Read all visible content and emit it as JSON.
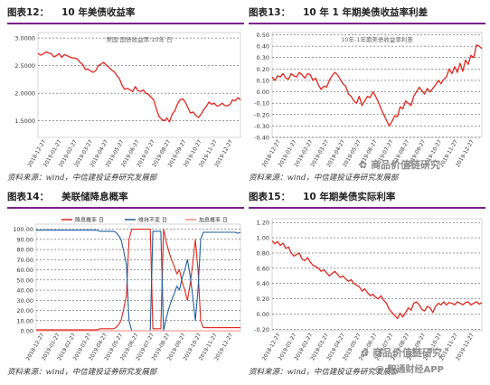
{
  "panels": [
    {
      "caption_no": "图表12：",
      "caption_title": "10 年美债收益率",
      "source": "资料来源：wind，中信建投证券研究发展部"
    },
    {
      "caption_no": "图表13：",
      "caption_title": "10 年 1 年期美债收益率利差",
      "source": "资料来源：wind，中信建投证券研究发展部"
    },
    {
      "caption_no": "图表14：",
      "caption_title": "美联储降息概率",
      "source": "资料来源：wind，中信建投证券研究发展部"
    },
    {
      "caption_no": "图表15：",
      "caption_title": "10 年期美债实际利率",
      "source": "资料来源：wind，中信建投证券研究发展部"
    }
  ],
  "watermark": {
    "top": "商品价值链研究",
    "bottom_1": "商品价值链研究",
    "bottom_2": "@ 智通财经APP"
  },
  "colors": {
    "red": "#e0261c",
    "blue": "#1f5f9e",
    "pink": "#f28b82",
    "rule": "#7a1f8c"
  },
  "chart_data": [
    {
      "type": "line",
      "title": "美国:国债收益率:10年  日",
      "x_ticks": [
        "2018-12-27",
        "2019-01-27",
        "2019-02-27",
        "2019-03-27",
        "2019-04-27",
        "2019-05-27",
        "2019-06-27",
        "2019-07-27",
        "2019-08-27",
        "2019-09-27",
        "2019-10-27",
        "2019-11-27",
        "2019-12-27"
      ],
      "y_ticks": [
        "1.5000",
        "2.0000",
        "2.5000",
        "3.0000"
      ],
      "ylim": [
        1.2,
        3.1
      ],
      "series": [
        {
          "name": "",
          "color": "#e0261c",
          "y": [
            2.72,
            2.69,
            2.71,
            2.75,
            2.73,
            2.72,
            2.66,
            2.68,
            2.72,
            2.65,
            2.7,
            2.68,
            2.66,
            2.64,
            2.64,
            2.62,
            2.56,
            2.52,
            2.43,
            2.44,
            2.4,
            2.38,
            2.41,
            2.5,
            2.53,
            2.56,
            2.51,
            2.47,
            2.42,
            2.39,
            2.32,
            2.26,
            2.14,
            2.07,
            2.09,
            2.06,
            2.03,
            2.12,
            2.05,
            2.03,
            2.06,
            2.0,
            1.98,
            1.93,
            1.88,
            1.72,
            1.58,
            1.53,
            1.5,
            1.55,
            1.48,
            1.62,
            1.68,
            1.8,
            1.88,
            1.9,
            1.84,
            1.74,
            1.64,
            1.66,
            1.6,
            1.56,
            1.62,
            1.7,
            1.76,
            1.84,
            1.8,
            1.82,
            1.77,
            1.78,
            1.82,
            1.78,
            1.77,
            1.8,
            1.88,
            1.86,
            1.92,
            1.88
          ]
        }
      ]
    },
    {
      "type": "line",
      "title": "10年-1年期美债收益率利差",
      "x_ticks": [
        "2018-12-27",
        "2019-01-27",
        "2019-02-27",
        "2019-03-27",
        "2019-04-27",
        "2019-05-27",
        "2019-06-27",
        "2019-07-27",
        "2019-08-27",
        "2019-09-27",
        "2019-10-27",
        "2019-11-27",
        "2019-12-27"
      ],
      "y_ticks": [
        "-0.40",
        "-0.30",
        "-0.20",
        "-0.10",
        "0.00",
        "0.10",
        "0.20",
        "0.30",
        "0.40",
        "0.50"
      ],
      "ylim": [
        -0.4,
        0.52
      ],
      "series": [
        {
          "name": "",
          "color": "#e0261c",
          "y": [
            0.13,
            0.1,
            0.14,
            0.13,
            0.16,
            0.12,
            0.11,
            0.16,
            0.14,
            0.13,
            0.17,
            0.15,
            0.12,
            0.16,
            0.15,
            0.1,
            0.12,
            0.06,
            0.02,
            0.05,
            0.04,
            0.1,
            0.14,
            0.17,
            0.15,
            0.11,
            0.07,
            0.05,
            -0.02,
            -0.04,
            -0.08,
            -0.1,
            -0.04,
            -0.12,
            -0.08,
            -0.04,
            -0.05,
            0.0,
            -0.04,
            -0.09,
            -0.15,
            -0.2,
            -0.25,
            -0.3,
            -0.26,
            -0.21,
            -0.22,
            -0.13,
            -0.15,
            -0.08,
            -0.1,
            -0.12,
            -0.04,
            0.0,
            0.04,
            0.01,
            -0.02,
            0.03,
            0.0,
            0.03,
            0.06,
            0.1,
            0.07,
            0.11,
            0.13,
            0.2,
            0.16,
            0.22,
            0.17,
            0.25,
            0.18,
            0.28,
            0.24,
            0.32,
            0.3,
            0.41,
            0.4,
            0.38
          ]
        }
      ]
    },
    {
      "type": "line",
      "title": "",
      "legend": [
        "降息概率 日",
        "维持不变 日",
        "加息概率 日"
      ],
      "x_ticks": [
        "2018-12-27",
        "2019-01-27",
        "2019-02-27",
        "2019-03-27",
        "2019-04-27",
        "2019-05-27",
        "2019-06-27",
        "2019-07-27",
        "2019-08-27",
        "2019-09-27",
        "2019-10-27",
        "2019-11-27",
        "2019-12-27"
      ],
      "y_ticks": [
        "0.00",
        "10.00",
        "20.00",
        "30.00",
        "40.00",
        "50.00",
        "60.00",
        "70.00",
        "80.00",
        "90.00",
        "100.00"
      ],
      "ylim": [
        0,
        105
      ],
      "series": [
        {
          "name": "降息概率 日",
          "color": "#e0261c",
          "x": [
            0,
            1,
            2,
            3,
            4,
            5,
            6,
            7,
            8,
            9,
            10,
            11,
            12,
            13,
            14,
            15,
            16,
            17,
            18,
            19,
            20,
            21,
            22,
            23,
            24,
            25,
            26,
            27,
            28,
            29,
            30,
            31,
            32,
            33,
            34,
            35,
            36,
            37,
            38,
            39,
            40,
            41,
            42,
            43,
            44,
            45,
            46,
            47,
            48,
            49,
            50,
            51,
            52,
            53,
            54,
            55,
            56,
            57,
            58,
            59,
            60,
            61,
            62,
            63,
            64,
            65,
            66,
            67,
            68,
            69,
            70,
            71,
            72,
            73,
            74,
            75,
            76,
            77
          ],
          "y": [
            1,
            1,
            1,
            1,
            1,
            1,
            1,
            1,
            1,
            1,
            1,
            1,
            1,
            1,
            1,
            1,
            1,
            1,
            1,
            1,
            1,
            1,
            1,
            1,
            2,
            2,
            2,
            2,
            2,
            2,
            3,
            6,
            10,
            22,
            35,
            90,
            100,
            100,
            100,
            100,
            100,
            100,
            100,
            100,
            2,
            2,
            2,
            2,
            100,
            88,
            78,
            70,
            64,
            56,
            60,
            48,
            40,
            30,
            45,
            66,
            90,
            60,
            10,
            3,
            3,
            3,
            3,
            3,
            3,
            3,
            3,
            3,
            3,
            3,
            3,
            3,
            3,
            3
          ]
        },
        {
          "name": "维持不变 日",
          "color": "#1f5f9e",
          "x": [
            0,
            1,
            2,
            3,
            4,
            5,
            6,
            7,
            8,
            9,
            10,
            11,
            12,
            13,
            14,
            15,
            16,
            17,
            18,
            19,
            20,
            21,
            22,
            23,
            24,
            25,
            26,
            27,
            28,
            29,
            30,
            31,
            32,
            33,
            34,
            35,
            36,
            37,
            38,
            39,
            40,
            41,
            42,
            43,
            44,
            45,
            46,
            47,
            48,
            49,
            50,
            51,
            52,
            53,
            54,
            55,
            56,
            57,
            58,
            59,
            60,
            61,
            62,
            63,
            64,
            65,
            66,
            67,
            68,
            69,
            70,
            71,
            72,
            73,
            74,
            75,
            76,
            77
          ],
          "y": [
            99,
            99,
            99,
            99,
            99,
            99,
            99,
            99,
            99,
            99,
            99,
            99,
            99,
            99,
            99,
            99,
            99,
            99,
            99,
            99,
            99,
            99,
            99,
            99,
            98,
            98,
            98,
            98,
            98,
            98,
            97,
            94,
            90,
            78,
            65,
            10,
            0,
            0,
            0,
            0,
            0,
            0,
            0,
            0,
            98,
            98,
            98,
            98,
            0,
            12,
            22,
            30,
            36,
            44,
            40,
            52,
            60,
            70,
            55,
            34,
            10,
            40,
            90,
            97,
            97,
            97,
            97,
            97,
            97,
            97,
            97,
            97,
            97,
            97,
            97,
            97,
            96,
            97
          ]
        },
        {
          "name": "加息概率 日",
          "color": "#f28b82",
          "x": [
            0,
            77
          ],
          "y": [
            0,
            0
          ]
        }
      ]
    },
    {
      "type": "line",
      "title": "",
      "x_ticks": [
        "2018-12-27",
        "2019-01-27",
        "2019-02-27",
        "2019-03-27",
        "2019-04-27",
        "2019-05-27",
        "2019-06-27",
        "2019-07-27",
        "2019-08-27",
        "2019-09-27",
        "2019-10-27",
        "2019-11-27",
        "2019-12-27"
      ],
      "y_ticks": [
        "-0.20",
        "0.00",
        "0.20",
        "0.40",
        "0.60",
        "0.80",
        "1.00",
        "1.20"
      ],
      "ylim": [
        -0.22,
        1.25
      ],
      "series": [
        {
          "name": "",
          "color": "#e0261c",
          "y": [
            0.96,
            0.92,
            0.95,
            0.9,
            0.93,
            0.86,
            0.88,
            0.8,
            0.76,
            0.78,
            0.8,
            0.72,
            0.7,
            0.74,
            0.68,
            0.64,
            0.62,
            0.6,
            0.56,
            0.58,
            0.54,
            0.5,
            0.53,
            0.56,
            0.52,
            0.48,
            0.5,
            0.46,
            0.43,
            0.45,
            0.4,
            0.38,
            0.36,
            0.3,
            0.33,
            0.28,
            0.24,
            0.26,
            0.22,
            0.2,
            0.24,
            0.18,
            0.14,
            0.06,
            0.02,
            -0.02,
            -0.06,
            0.01,
            -0.04,
            0.02,
            0.08,
            0.05,
            0.14,
            0.16,
            0.12,
            0.06,
            0.04,
            0.1,
            0.08,
            0.02,
            0.1,
            0.14,
            0.12,
            0.16,
            0.12,
            0.15,
            0.14,
            0.12,
            0.16,
            0.14,
            0.12,
            0.15,
            0.16,
            0.12,
            0.14,
            0.16,
            0.13,
            0.15
          ]
        }
      ]
    }
  ]
}
